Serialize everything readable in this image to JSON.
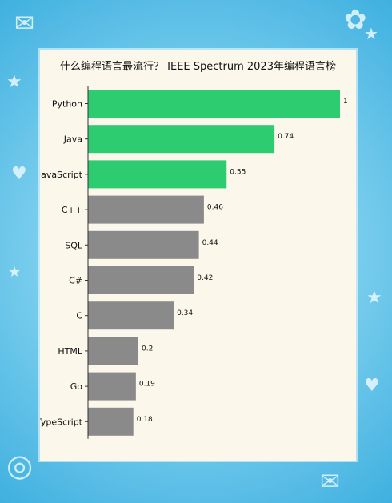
{
  "chart_data": {
    "type": "bar",
    "orientation": "horizontal",
    "title": "什么编程语言最流行？ IEEE Spectrum 2023年编程语言榜",
    "categories": [
      "Python",
      "Java",
      "JavaScript",
      "C++",
      "SQL",
      "C#",
      "C",
      "HTML",
      "Go",
      "TypeScript"
    ],
    "values": [
      1,
      0.74,
      0.55,
      0.46,
      0.44,
      0.42,
      0.34,
      0.2,
      0.19,
      0.18
    ],
    "value_labels": [
      "1",
      "0.74",
      "0.55",
      "0.46",
      "0.44",
      "0.42",
      "0.34",
      "0.2",
      "0.19",
      "0.18"
    ],
    "xlim": [
      0,
      1
    ],
    "grid": false,
    "colors": {
      "highlight": "#2ecc71",
      "default": "#8a8a8a",
      "highlight_count": 3
    }
  }
}
